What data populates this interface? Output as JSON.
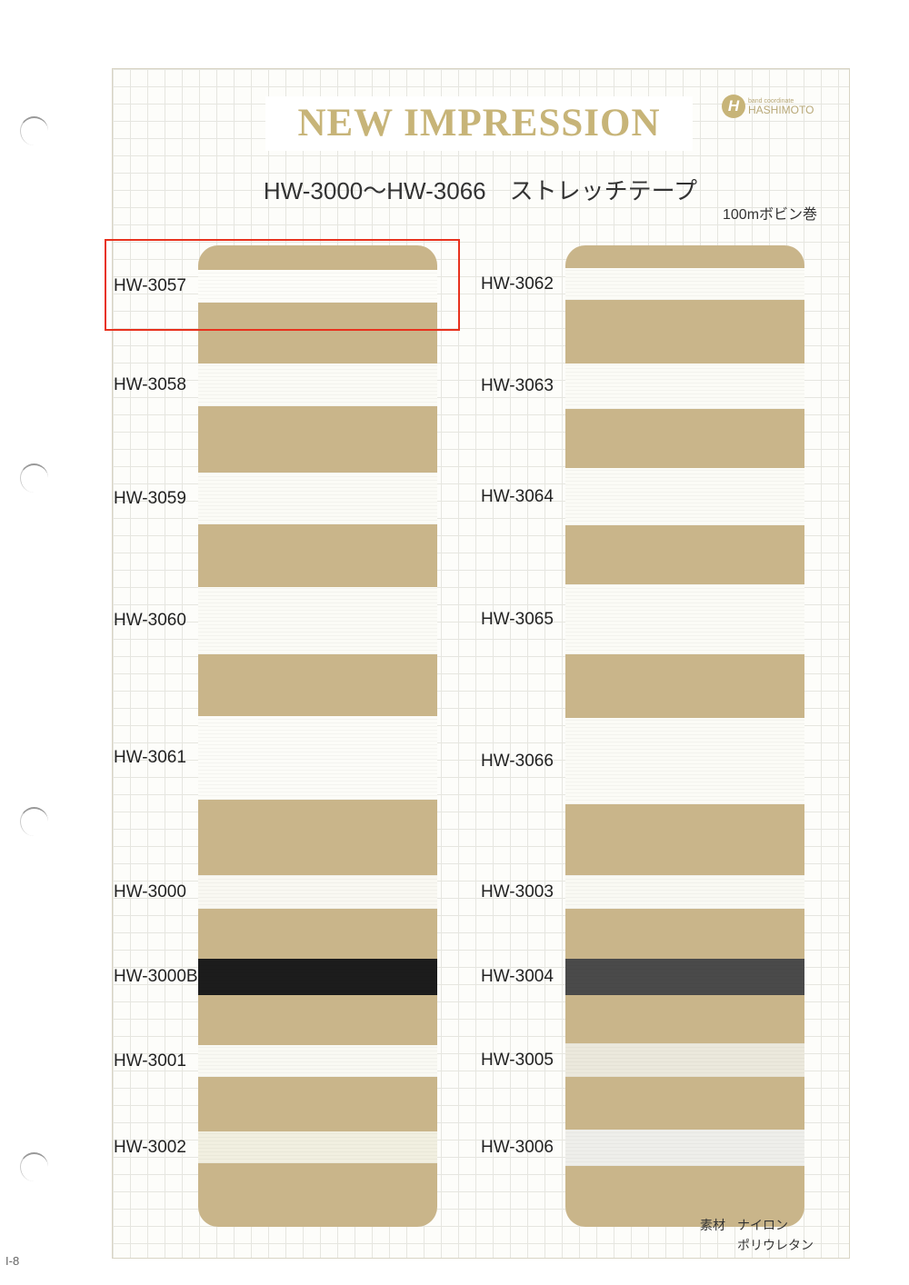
{
  "header": {
    "title": "NEW  IMPRESSION",
    "subtitle": "HW-3000〜HW-3066　ストレッチテープ",
    "bobbin": "100mボビン巻"
  },
  "logo": {
    "mark": "H",
    "tagline": "band coordinate",
    "brand": "HASHIMOTO"
  },
  "left": [
    {
      "code": "HW-3057",
      "color": "#fdfdf9"
    },
    {
      "code": "HW-3058",
      "color": "#fbfbf6"
    },
    {
      "code": "HW-3059",
      "color": "#fbfbf6"
    },
    {
      "code": "HW-3060",
      "color": "#fbfbf6"
    },
    {
      "code": "HW-3061",
      "color": "#fcfcf8"
    },
    {
      "code": "HW-3000",
      "color": "#f9f8f2"
    },
    {
      "code": "HW-3000B",
      "color": "#1c1c1c"
    },
    {
      "code": "HW-3001",
      "color": "#f9f9f3"
    },
    {
      "code": "HW-3002",
      "color": "#f1efe0"
    }
  ],
  "right": [
    {
      "code": "HW-3062",
      "color": "#fbfbf6"
    },
    {
      "code": "HW-3063",
      "color": "#fbfbf6"
    },
    {
      "code": "HW-3064",
      "color": "#fbfbf6"
    },
    {
      "code": "HW-3065",
      "color": "#fbfbf6"
    },
    {
      "code": "HW-3066",
      "color": "#fbfbf6"
    },
    {
      "code": "HW-3003",
      "color": "#f9f9f3"
    },
    {
      "code": "HW-3004",
      "color": "#4a4a4a"
    },
    {
      "code": "HW-3005",
      "color": "#ebe8dc"
    },
    {
      "code": "HW-3006",
      "color": "#eeeeea"
    }
  ],
  "material": {
    "label": "素材",
    "line1": "ナイロン",
    "line2": "ポリウレタン"
  },
  "page_number": "I-8",
  "highlight_color": "#e8321e"
}
